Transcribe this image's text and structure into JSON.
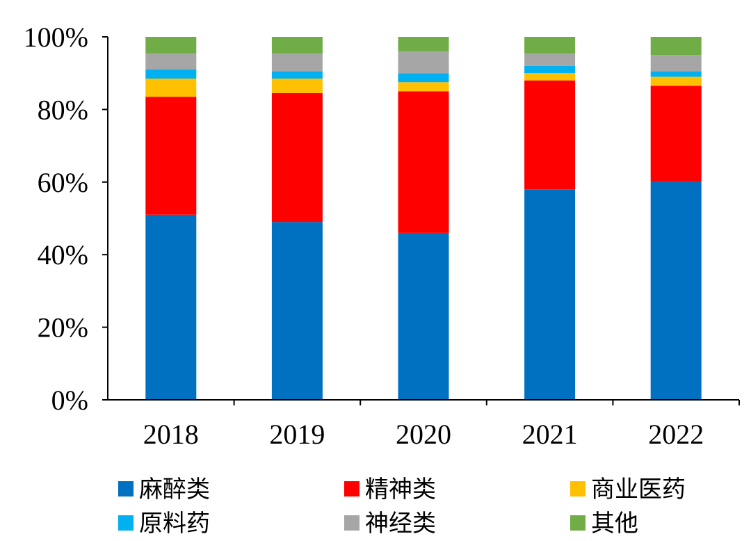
{
  "chart_data": {
    "type": "bar",
    "stacked": true,
    "categories": [
      "2018",
      "2019",
      "2020",
      "2021",
      "2022"
    ],
    "ylim": [
      0,
      100
    ],
    "yticks": [
      0,
      20,
      40,
      60,
      80,
      100
    ],
    "ytick_labels": [
      "0%",
      "20%",
      "40%",
      "60%",
      "80%",
      "100%"
    ],
    "xlabel": "",
    "ylabel": "",
    "title": "",
    "grid": false,
    "legend_position": "bottom",
    "series": [
      {
        "name": "麻醉类",
        "color": "#0070C0",
        "values": [
          51,
          49,
          46,
          58,
          60
        ]
      },
      {
        "name": "精神类",
        "color": "#FF0000",
        "values": [
          32.5,
          35.5,
          39,
          30,
          26.5
        ]
      },
      {
        "name": "商业医药",
        "color": "#FFC000",
        "values": [
          5,
          4,
          2.5,
          2,
          2.5
        ]
      },
      {
        "name": "原料药",
        "color": "#00B0F0",
        "values": [
          2.5,
          2,
          2.5,
          2,
          1.5
        ]
      },
      {
        "name": "神经类",
        "color": "#A6A6A6",
        "values": [
          4.5,
          5,
          6,
          3.5,
          4.5
        ]
      },
      {
        "name": "其他",
        "color": "#70AD47",
        "values": [
          4.5,
          4.5,
          4,
          4.5,
          5
        ]
      }
    ]
  }
}
